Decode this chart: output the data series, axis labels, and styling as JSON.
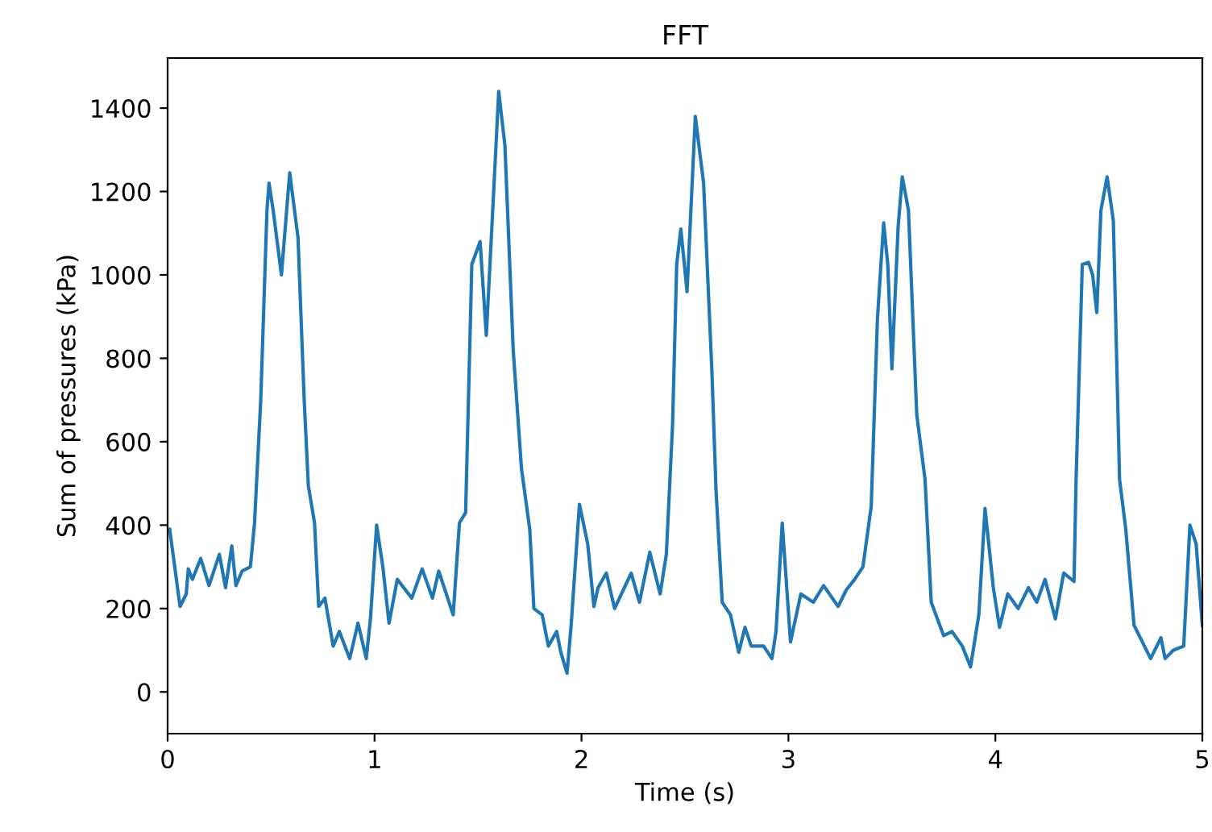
{
  "chart_data": {
    "type": "line",
    "title": "FFT",
    "xlabel": "Time (s)",
    "ylabel": "Sum of pressures (kPa)",
    "x": [
      0.01,
      0.06,
      0.09,
      0.1,
      0.12,
      0.16,
      0.2,
      0.25,
      0.28,
      0.31,
      0.33,
      0.36,
      0.4,
      0.42,
      0.45,
      0.48,
      0.49,
      0.51,
      0.55,
      0.59,
      0.63,
      0.66,
      0.68,
      0.71,
      0.73,
      0.76,
      0.8,
      0.83,
      0.88,
      0.92,
      0.96,
      0.98,
      1.01,
      1.04,
      1.07,
      1.11,
      1.18,
      1.23,
      1.28,
      1.31,
      1.38,
      1.41,
      1.44,
      1.47,
      1.51,
      1.54,
      1.57,
      1.6,
      1.63,
      1.67,
      1.71,
      1.75,
      1.77,
      1.81,
      1.84,
      1.88,
      1.9,
      1.93,
      1.95,
      1.99,
      2.03,
      2.06,
      2.08,
      2.12,
      2.16,
      2.24,
      2.28,
      2.33,
      2.38,
      2.41,
      2.44,
      2.46,
      2.48,
      2.51,
      2.55,
      2.59,
      2.63,
      2.65,
      2.68,
      2.72,
      2.76,
      2.79,
      2.82,
      2.88,
      2.92,
      2.94,
      2.97,
      3.01,
      3.06,
      3.12,
      3.17,
      3.24,
      3.28,
      3.32,
      3.36,
      3.4,
      3.43,
      3.46,
      3.48,
      3.5,
      3.53,
      3.55,
      3.58,
      3.62,
      3.66,
      3.69,
      3.75,
      3.79,
      3.84,
      3.88,
      3.92,
      3.95,
      3.99,
      4.02,
      4.06,
      4.11,
      4.16,
      4.2,
      4.24,
      4.29,
      4.33,
      4.38,
      4.39,
      4.42,
      4.45,
      4.47,
      4.49,
      4.51,
      4.54,
      4.57,
      4.6,
      4.63,
      4.67,
      4.71,
      4.75,
      4.8,
      4.82,
      4.86,
      4.91,
      4.94,
      4.97,
      5.0
    ],
    "series": [
      {
        "color": "#1f77b4",
        "values": [
          390,
          205,
          235,
          295,
          270,
          320,
          255,
          330,
          250,
          350,
          255,
          290,
          300,
          405,
          700,
          1155,
          1220,
          1155,
          1000,
          1245,
          1090,
          700,
          495,
          405,
          205,
          225,
          110,
          145,
          80,
          165,
          80,
          175,
          400,
          300,
          165,
          270,
          225,
          295,
          225,
          290,
          185,
          405,
          430,
          1025,
          1080,
          855,
          1145,
          1440,
          1310,
          820,
          535,
          390,
          200,
          185,
          110,
          145,
          95,
          45,
          160,
          450,
          355,
          205,
          250,
          285,
          200,
          285,
          215,
          335,
          235,
          330,
          640,
          1025,
          1110,
          960,
          1380,
          1220,
          770,
          485,
          215,
          185,
          95,
          155,
          110,
          110,
          80,
          145,
          405,
          120,
          235,
          215,
          255,
          205,
          245,
          270,
          300,
          445,
          895,
          1125,
          1025,
          775,
          1115,
          1235,
          1155,
          665,
          510,
          215,
          135,
          145,
          110,
          60,
          185,
          440,
          250,
          155,
          235,
          200,
          250,
          215,
          270,
          175,
          285,
          265,
          510,
          1025,
          1030,
          1000,
          910,
          1155,
          1235,
          1130,
          510,
          390,
          160,
          120,
          80,
          130,
          80,
          100,
          110,
          400,
          355,
          160
        ]
      }
    ],
    "xlim": [
      0,
      5
    ],
    "ylim": [
      -100,
      1520
    ],
    "xticks": [
      0,
      1,
      2,
      3,
      4,
      5
    ],
    "yticks": [
      0,
      200,
      400,
      600,
      800,
      1000,
      1200,
      1400
    ],
    "grid": false
  }
}
